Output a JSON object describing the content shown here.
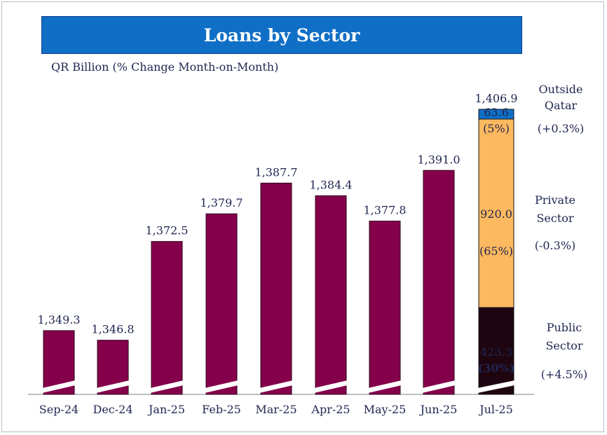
{
  "title": "Loans by Sector",
  "subtitle": "QR Billion (% Change Month-on-Month)",
  "chart_data": {
    "type": "bar",
    "title": "Loans by Sector",
    "ylabel": "QR Billion (% Change Month-on-Month)",
    "axis_break": true,
    "ylim": [
      1300,
      1420
    ],
    "categories": [
      "Sep-24",
      "Dec-24",
      "Jan-25",
      "Feb-25",
      "Mar-25",
      "Apr-25",
      "May-25",
      "Jun-25",
      "Jul-25"
    ],
    "values": [
      1349.3,
      1346.8,
      1372.5,
      1379.7,
      1387.7,
      1384.4,
      1377.8,
      1391.0,
      1406.9
    ],
    "value_labels": [
      "1,349.3",
      "1,346.8",
      "1,372.5",
      "1,379.7",
      "1,387.7",
      "1,384.4",
      "1,377.8",
      "1,391.0",
      "1,406.9"
    ],
    "stacked_last_bar": {
      "category": "Jul-25",
      "segments": [
        {
          "name": "Public Sector",
          "value": 423.3,
          "value_label": "423.3",
          "share": "(30%)",
          "change": "(+4.5%)",
          "color": "#1e0510"
        },
        {
          "name": "Private Sector",
          "value": 920.0,
          "value_label": "920.0",
          "share": "(65%)",
          "change": "(-0.3%)",
          "color": "#fdb95f"
        },
        {
          "name": "Outside Qatar",
          "value": 63.6,
          "value_label": "63.6",
          "share": "(5%)",
          "change": "(+0.3%)",
          "color": "#0f6fc6"
        }
      ]
    },
    "legend_labels": [
      {
        "lines": [
          "Outside",
          "Qatar"
        ],
        "change": "(+0.3%)"
      },
      {
        "lines": [
          "Private",
          "Sector"
        ],
        "change": "(-0.3%)"
      },
      {
        "lines": [
          "Public",
          "Sector"
        ],
        "change": "(+4.5%)"
      }
    ],
    "bar_color": "#85004b"
  }
}
